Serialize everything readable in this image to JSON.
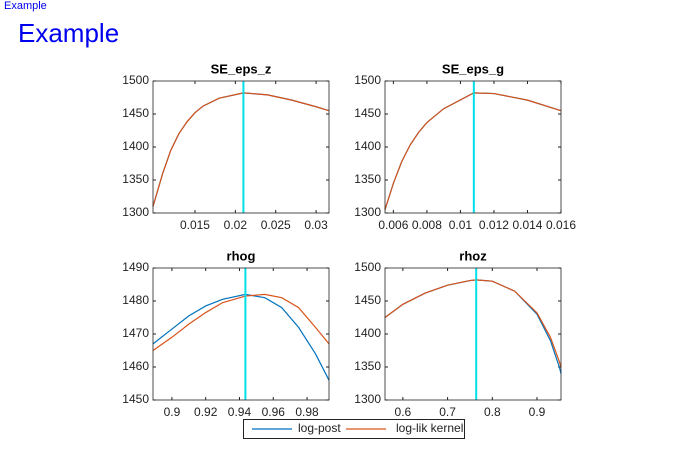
{
  "header": {
    "link": "Example",
    "title": "Example"
  },
  "chart_data": [
    {
      "type": "line",
      "title": "SE_eps_z",
      "x": [
        0.0098,
        0.011,
        0.012,
        0.013,
        0.014,
        0.015,
        0.016,
        0.018,
        0.021,
        0.024,
        0.027,
        0.03,
        0.0316
      ],
      "series": [
        {
          "name": "log-post",
          "color": "#0072bd",
          "values": [
            1310,
            1360,
            1395,
            1420,
            1438,
            1452,
            1462,
            1474,
            1482,
            1479,
            1471,
            1461,
            1455
          ]
        },
        {
          "name": "log-lik kernel",
          "color": "#d95319",
          "values": [
            1310,
            1360,
            1395,
            1420,
            1438,
            1452,
            1462,
            1474,
            1482,
            1479,
            1471,
            1461,
            1455
          ]
        }
      ],
      "vline": 0.021,
      "vline_color": "#00e0e8",
      "xlim": [
        0.0098,
        0.0316
      ],
      "xticks": [
        0.015,
        0.02,
        0.025,
        0.03
      ],
      "ylim": [
        1300,
        1500
      ],
      "yticks": [
        1300,
        1350,
        1400,
        1450,
        1500
      ]
    },
    {
      "type": "line",
      "title": "SE_eps_g",
      "x": [
        0.0055,
        0.006,
        0.0065,
        0.007,
        0.0075,
        0.008,
        0.009,
        0.0108,
        0.012,
        0.014,
        0.016
      ],
      "series": [
        {
          "color": "#0072bd",
          "values": [
            1305,
            1345,
            1378,
            1403,
            1422,
            1437,
            1458,
            1482,
            1481,
            1471,
            1455
          ]
        },
        {
          "color": "#d95319",
          "values": [
            1305,
            1345,
            1378,
            1403,
            1422,
            1437,
            1458,
            1482,
            1481,
            1471,
            1455
          ]
        }
      ],
      "vline": 0.0108,
      "vline_color": "#00e0e8",
      "xlim": [
        0.0055,
        0.016
      ],
      "xticks": [
        0.006,
        0.008,
        0.01,
        0.012,
        0.014,
        0.016
      ],
      "ylim": [
        1300,
        1500
      ],
      "yticks": [
        1300,
        1350,
        1400,
        1450,
        1500
      ]
    },
    {
      "type": "line",
      "title": "rhog",
      "x": [
        0.8888,
        0.9,
        0.91,
        0.92,
        0.93,
        0.9435,
        0.955,
        0.965,
        0.975,
        0.985,
        0.993
      ],
      "series": [
        {
          "color": "#0072bd",
          "values": [
            1467,
            1471.5,
            1475.5,
            1478.5,
            1480.5,
            1482,
            1481,
            1478,
            1472,
            1464,
            1456
          ]
        },
        {
          "color": "#d95319",
          "values": [
            1465,
            1469,
            1473,
            1476.5,
            1479.5,
            1481.5,
            1482,
            1481,
            1478,
            1472,
            1467
          ]
        }
      ],
      "vline": 0.9435,
      "vline_color": "#00e0e8",
      "xlim": [
        0.8888,
        0.993
      ],
      "xticks": [
        0.9,
        0.92,
        0.94,
        0.96,
        0.98
      ],
      "ylim": [
        1450,
        1490
      ],
      "yticks": [
        1450,
        1460,
        1470,
        1480,
        1490
      ]
    },
    {
      "type": "line",
      "title": "rhoz",
      "x": [
        0.56,
        0.6,
        0.65,
        0.7,
        0.75,
        0.764,
        0.8,
        0.85,
        0.9,
        0.93,
        0.95,
        0.9537
      ],
      "series": [
        {
          "color": "#0072bd",
          "values": [
            1425,
            1445,
            1462,
            1474,
            1481,
            1482,
            1480,
            1465,
            1430,
            1390,
            1350,
            1340
          ]
        },
        {
          "color": "#d95319",
          "values": [
            1425,
            1445,
            1462,
            1474,
            1481,
            1482,
            1480,
            1465,
            1432,
            1395,
            1358,
            1350
          ]
        }
      ],
      "vline": 0.764,
      "vline_color": "#00e0e8",
      "xlim": [
        0.56,
        0.9537
      ],
      "xticks": [
        0.6,
        0.7,
        0.8,
        0.9
      ],
      "ylim": [
        1300,
        1500
      ],
      "yticks": [
        1300,
        1350,
        1400,
        1450,
        1500
      ]
    }
  ]
}
